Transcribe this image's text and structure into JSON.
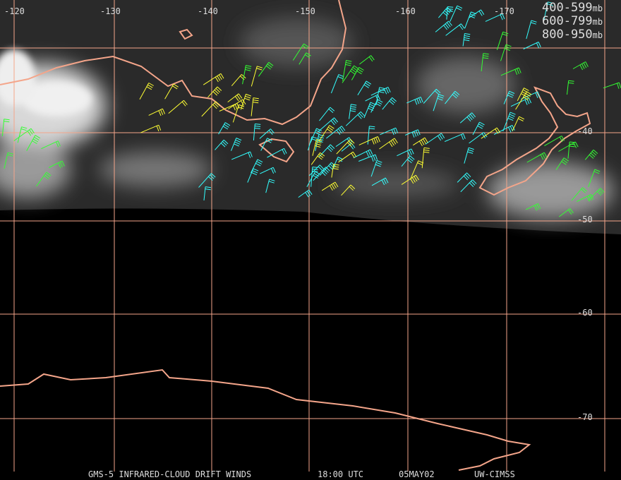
{
  "longitude_labels": [
    "-120",
    "-130",
    "-140",
    "-150",
    "-160",
    "-170"
  ],
  "latitude_labels": [
    "-40",
    "-50",
    "-60",
    "-70"
  ],
  "legend": [
    {
      "range": "400-599",
      "unit": "mb",
      "color": "#33ff33"
    },
    {
      "range": "600-799",
      "unit": "mb",
      "color": "#ffff33"
    },
    {
      "range": "800-950",
      "unit": "mb",
      "color": "#33ffff"
    }
  ],
  "footer": {
    "product": "GMS-5 INFRARED-CLOUD DRIFT WINDS",
    "time": "18:00 UTC",
    "date": "05MAY02",
    "source": "UW-CIMSS"
  }
}
